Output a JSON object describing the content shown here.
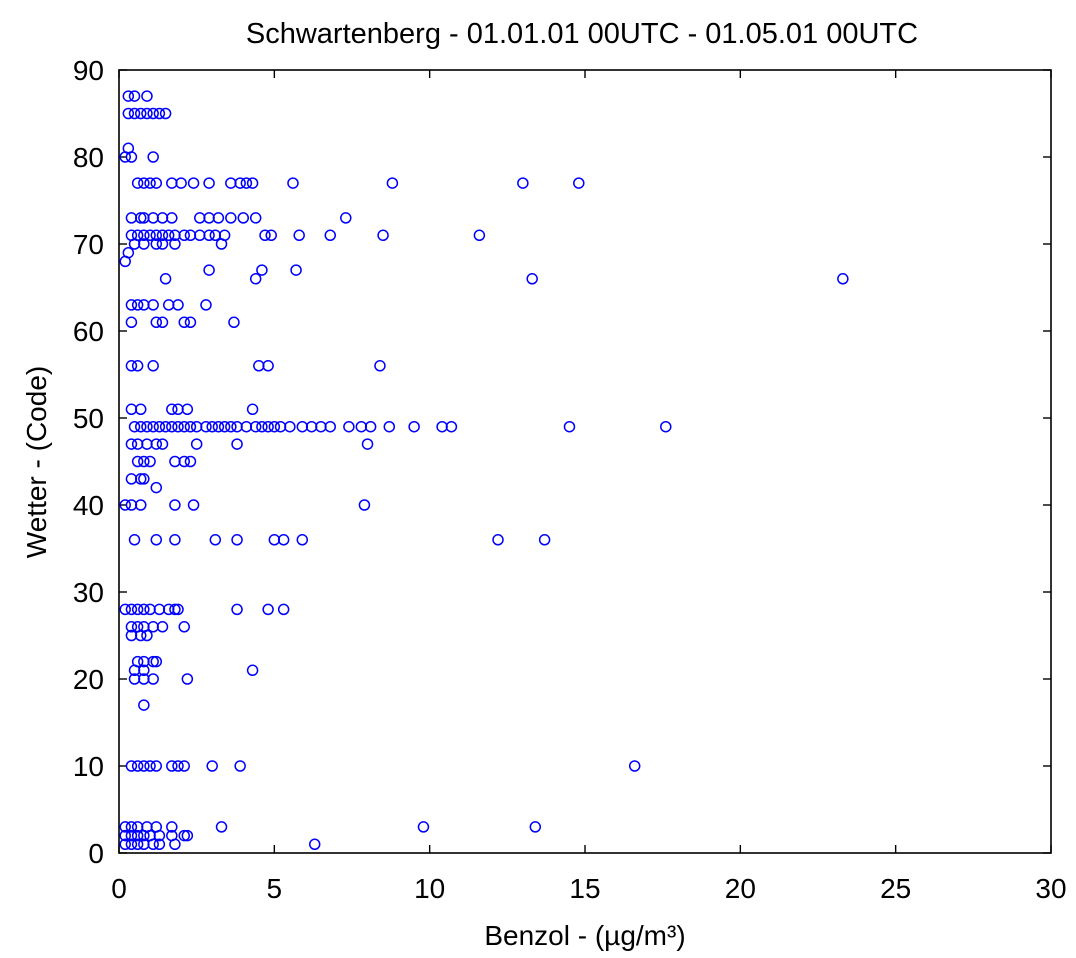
{
  "chart_data": {
    "type": "scatter",
    "title": "Schwartenberg  -  01.01.01  00UTC  -  01.05.01  00UTC",
    "xlabel": "Benzol       - (µg/m³)",
    "ylabel": "Wetter       - (Code)",
    "xlim": [
      0,
      30
    ],
    "ylim": [
      0,
      90
    ],
    "xticks": [
      "0",
      "5",
      "10",
      "15",
      "20",
      "25",
      "30"
    ],
    "yticks": [
      "0",
      "10",
      "20",
      "30",
      "40",
      "50",
      "60",
      "70",
      "80",
      "90"
    ],
    "grid": false,
    "marker": "circle-open",
    "color": "#0000ff",
    "points": [
      [
        0.3,
        87
      ],
      [
        0.5,
        87
      ],
      [
        0.9,
        87
      ],
      [
        0.3,
        85
      ],
      [
        0.5,
        85
      ],
      [
        0.7,
        85
      ],
      [
        0.9,
        85
      ],
      [
        1.1,
        85
      ],
      [
        1.3,
        85
      ],
      [
        1.5,
        85
      ],
      [
        0.3,
        81
      ],
      [
        0.2,
        80
      ],
      [
        0.4,
        80
      ],
      [
        1.1,
        80
      ],
      [
        0.6,
        77
      ],
      [
        0.8,
        77
      ],
      [
        1.0,
        77
      ],
      [
        1.2,
        77
      ],
      [
        1.7,
        77
      ],
      [
        2.0,
        77
      ],
      [
        2.4,
        77
      ],
      [
        2.9,
        77
      ],
      [
        3.6,
        77
      ],
      [
        3.9,
        77
      ],
      [
        4.1,
        77
      ],
      [
        4.3,
        77
      ],
      [
        5.6,
        77
      ],
      [
        8.8,
        77
      ],
      [
        13.0,
        77
      ],
      [
        14.8,
        77
      ],
      [
        0.4,
        73
      ],
      [
        0.7,
        73
      ],
      [
        0.8,
        73
      ],
      [
        1.1,
        73
      ],
      [
        1.4,
        73
      ],
      [
        1.7,
        73
      ],
      [
        2.6,
        73
      ],
      [
        2.9,
        73
      ],
      [
        3.2,
        73
      ],
      [
        3.6,
        73
      ],
      [
        4.0,
        73
      ],
      [
        4.4,
        73
      ],
      [
        7.3,
        73
      ],
      [
        0.4,
        71
      ],
      [
        0.6,
        71
      ],
      [
        0.8,
        71
      ],
      [
        1.0,
        71
      ],
      [
        1.2,
        71
      ],
      [
        1.4,
        71
      ],
      [
        1.6,
        71
      ],
      [
        1.8,
        71
      ],
      [
        2.1,
        71
      ],
      [
        2.3,
        71
      ],
      [
        2.6,
        71
      ],
      [
        2.9,
        71
      ],
      [
        3.1,
        71
      ],
      [
        3.4,
        71
      ],
      [
        4.7,
        71
      ],
      [
        4.9,
        71
      ],
      [
        5.8,
        71
      ],
      [
        6.8,
        71
      ],
      [
        8.5,
        71
      ],
      [
        11.6,
        71
      ],
      [
        0.5,
        70
      ],
      [
        0.8,
        70
      ],
      [
        1.2,
        70
      ],
      [
        1.4,
        70
      ],
      [
        1.8,
        70
      ],
      [
        3.3,
        70
      ],
      [
        0.3,
        69
      ],
      [
        0.2,
        68
      ],
      [
        2.9,
        67
      ],
      [
        4.6,
        67
      ],
      [
        5.7,
        67
      ],
      [
        1.5,
        66
      ],
      [
        4.4,
        66
      ],
      [
        13.3,
        66
      ],
      [
        23.3,
        66
      ],
      [
        0.4,
        63
      ],
      [
        0.6,
        63
      ],
      [
        0.8,
        63
      ],
      [
        1.1,
        63
      ],
      [
        1.6,
        63
      ],
      [
        1.9,
        63
      ],
      [
        2.8,
        63
      ],
      [
        0.4,
        61
      ],
      [
        1.2,
        61
      ],
      [
        1.4,
        61
      ],
      [
        2.1,
        61
      ],
      [
        2.3,
        61
      ],
      [
        3.7,
        61
      ],
      [
        0.4,
        56
      ],
      [
        0.6,
        56
      ],
      [
        1.1,
        56
      ],
      [
        4.5,
        56
      ],
      [
        4.8,
        56
      ],
      [
        8.4,
        56
      ],
      [
        0.4,
        51
      ],
      [
        0.7,
        51
      ],
      [
        1.7,
        51
      ],
      [
        1.9,
        51
      ],
      [
        2.2,
        51
      ],
      [
        4.3,
        51
      ],
      [
        0.5,
        49
      ],
      [
        0.7,
        49
      ],
      [
        0.9,
        49
      ],
      [
        1.1,
        49
      ],
      [
        1.3,
        49
      ],
      [
        1.5,
        49
      ],
      [
        1.7,
        49
      ],
      [
        1.9,
        49
      ],
      [
        2.1,
        49
      ],
      [
        2.3,
        49
      ],
      [
        2.5,
        49
      ],
      [
        2.8,
        49
      ],
      [
        3.0,
        49
      ],
      [
        3.2,
        49
      ],
      [
        3.4,
        49
      ],
      [
        3.6,
        49
      ],
      [
        3.8,
        49
      ],
      [
        4.1,
        49
      ],
      [
        4.4,
        49
      ],
      [
        4.6,
        49
      ],
      [
        4.8,
        49
      ],
      [
        5.0,
        49
      ],
      [
        5.2,
        49
      ],
      [
        5.5,
        49
      ],
      [
        5.9,
        49
      ],
      [
        6.2,
        49
      ],
      [
        6.5,
        49
      ],
      [
        6.8,
        49
      ],
      [
        7.4,
        49
      ],
      [
        7.8,
        49
      ],
      [
        8.1,
        49
      ],
      [
        8.7,
        49
      ],
      [
        9.5,
        49
      ],
      [
        10.4,
        49
      ],
      [
        10.7,
        49
      ],
      [
        14.5,
        49
      ],
      [
        17.6,
        49
      ],
      [
        0.4,
        47
      ],
      [
        0.6,
        47
      ],
      [
        0.9,
        47
      ],
      [
        1.2,
        47
      ],
      [
        1.4,
        47
      ],
      [
        2.5,
        47
      ],
      [
        3.8,
        47
      ],
      [
        8.0,
        47
      ],
      [
        0.6,
        45
      ],
      [
        0.8,
        45
      ],
      [
        1.0,
        45
      ],
      [
        1.8,
        45
      ],
      [
        2.1,
        45
      ],
      [
        2.3,
        45
      ],
      [
        0.4,
        43
      ],
      [
        0.7,
        43
      ],
      [
        0.8,
        43
      ],
      [
        1.2,
        42
      ],
      [
        0.2,
        40
      ],
      [
        0.4,
        40
      ],
      [
        0.7,
        40
      ],
      [
        1.8,
        40
      ],
      [
        2.4,
        40
      ],
      [
        7.9,
        40
      ],
      [
        0.5,
        36
      ],
      [
        1.2,
        36
      ],
      [
        1.8,
        36
      ],
      [
        3.1,
        36
      ],
      [
        3.8,
        36
      ],
      [
        5.0,
        36
      ],
      [
        5.3,
        36
      ],
      [
        5.9,
        36
      ],
      [
        12.2,
        36
      ],
      [
        13.7,
        36
      ],
      [
        0.2,
        28
      ],
      [
        0.4,
        28
      ],
      [
        0.6,
        28
      ],
      [
        0.8,
        28
      ],
      [
        1.0,
        28
      ],
      [
        1.3,
        28
      ],
      [
        1.6,
        28
      ],
      [
        1.8,
        28
      ],
      [
        1.9,
        28
      ],
      [
        3.8,
        28
      ],
      [
        4.8,
        28
      ],
      [
        5.3,
        28
      ],
      [
        0.4,
        26
      ],
      [
        0.6,
        26
      ],
      [
        0.8,
        26
      ],
      [
        1.1,
        26
      ],
      [
        1.4,
        26
      ],
      [
        2.1,
        26
      ],
      [
        0.4,
        25
      ],
      [
        0.7,
        25
      ],
      [
        0.9,
        25
      ],
      [
        0.6,
        22
      ],
      [
        0.8,
        22
      ],
      [
        1.1,
        22
      ],
      [
        1.2,
        22
      ],
      [
        0.5,
        21
      ],
      [
        0.8,
        21
      ],
      [
        4.3,
        21
      ],
      [
        0.5,
        20
      ],
      [
        0.8,
        20
      ],
      [
        1.1,
        20
      ],
      [
        2.2,
        20
      ],
      [
        0.8,
        17
      ],
      [
        0.4,
        10
      ],
      [
        0.6,
        10
      ],
      [
        0.8,
        10
      ],
      [
        1.0,
        10
      ],
      [
        1.2,
        10
      ],
      [
        1.7,
        10
      ],
      [
        1.9,
        10
      ],
      [
        2.1,
        10
      ],
      [
        3.0,
        10
      ],
      [
        3.9,
        10
      ],
      [
        16.6,
        10
      ],
      [
        0.2,
        3
      ],
      [
        0.4,
        3
      ],
      [
        0.6,
        3
      ],
      [
        0.9,
        3
      ],
      [
        1.2,
        3
      ],
      [
        1.7,
        3
      ],
      [
        3.3,
        3
      ],
      [
        9.8,
        3
      ],
      [
        13.4,
        3
      ],
      [
        0.2,
        2
      ],
      [
        0.4,
        2
      ],
      [
        0.6,
        2
      ],
      [
        0.8,
        2
      ],
      [
        1.0,
        2
      ],
      [
        1.3,
        2
      ],
      [
        1.7,
        2
      ],
      [
        2.1,
        2
      ],
      [
        2.2,
        2
      ],
      [
        0.2,
        1
      ],
      [
        0.4,
        1
      ],
      [
        0.6,
        1
      ],
      [
        0.8,
        1
      ],
      [
        1.1,
        1
      ],
      [
        1.3,
        1
      ],
      [
        1.8,
        1
      ],
      [
        6.3,
        1
      ]
    ]
  }
}
